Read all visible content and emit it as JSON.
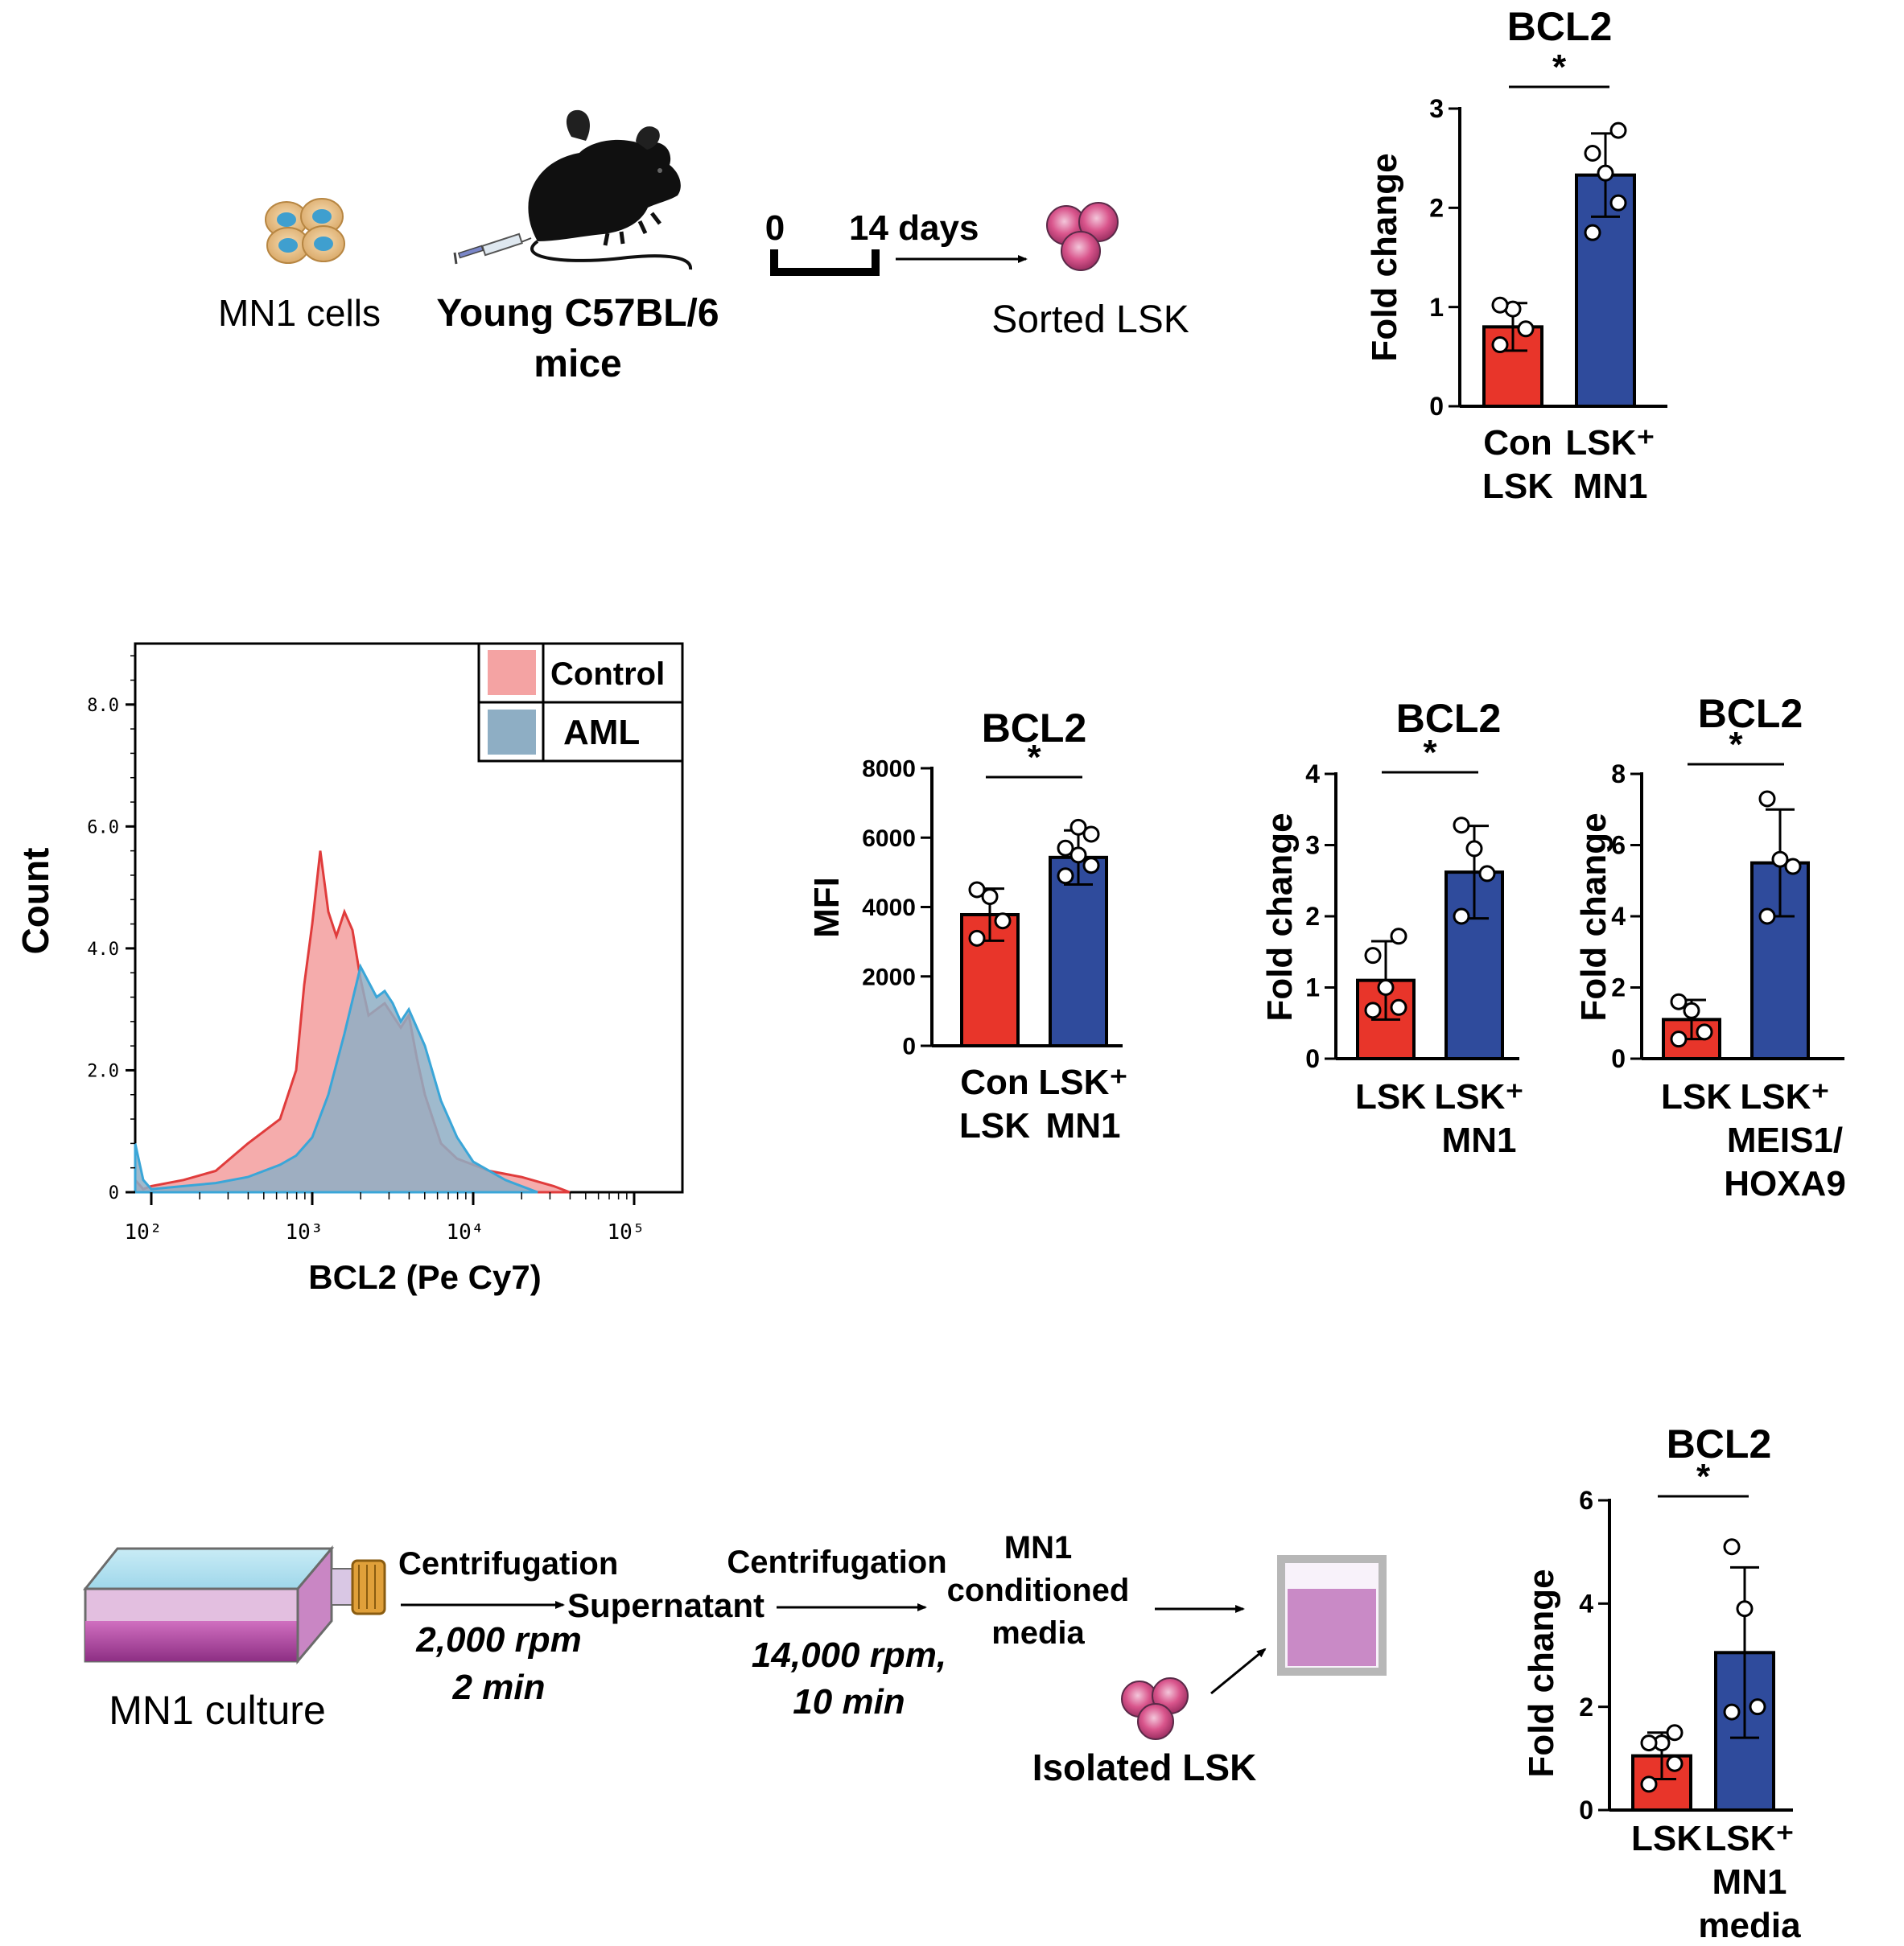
{
  "colors": {
    "red": "#e8352a",
    "blue": "#2f4b9c",
    "control_fill": "#f4a3a3",
    "control_line": "#e03c3c",
    "aml_fill": "#8eaec4",
    "aml_line": "#3aa6d8",
    "pink": "#d9558c",
    "purple": "#b06cb5"
  },
  "panel_a": {
    "mn1_cells": "MN1 cells",
    "mouse_line1": "Young C57BL/6",
    "mouse_line2": "mice",
    "timeline_start": "0",
    "timeline_end": "14 days",
    "sorted": "Sorted LSK"
  },
  "panel_c": {
    "culture": "MN1 culture",
    "step1_title": "Centrifugation",
    "step1_speed": "2,000 rpm",
    "step1_time": "2 min",
    "supernatant": "Supernatant",
    "step2_title": "Centrifugation",
    "step2_speed": "14,000 rpm,",
    "step2_time": "10 min",
    "cm_line1": "MN1",
    "cm_line2": "conditioned",
    "cm_line3": "media",
    "isolated": "Isolated LSK"
  },
  "chart_data": [
    {
      "id": "bar_a",
      "type": "bar",
      "title": "BCL2",
      "ylabel": "Fold change",
      "ylim": [
        0,
        3
      ],
      "ticks": [
        "0",
        "1",
        "2",
        "3"
      ],
      "significance": "*",
      "categories": [
        [
          "Con",
          "LSK"
        ],
        [
          "LSK⁺",
          "MN1"
        ]
      ],
      "values": [
        0.8,
        2.33
      ],
      "err": [
        0.24,
        0.42
      ],
      "points": [
        [
          0.62,
          0.78,
          0.98,
          1.02
        ],
        [
          1.75,
          2.05,
          2.35,
          2.55,
          2.78
        ]
      ]
    },
    {
      "id": "histogram",
      "type": "area",
      "title": "",
      "xlabel": "BCL2 (Pe Cy7)",
      "ylabel": "Count",
      "ylim": [
        0,
        9.0
      ],
      "yticks": [
        "0",
        "2.0",
        "4.0",
        "6.0",
        "8.0"
      ],
      "xticks": [
        "10²",
        "10³",
        "10⁴",
        "10⁵"
      ],
      "xlim_log10": [
        1.9,
        5.3
      ],
      "legend": [
        "Control",
        "AML"
      ],
      "legend_position": "top-right",
      "series": [
        {
          "name": "Control",
          "x": [
            1.9,
            1.95,
            2.0,
            2.2,
            2.4,
            2.6,
            2.8,
            2.9,
            2.95,
            3.0,
            3.05,
            3.1,
            3.15,
            3.2,
            3.25,
            3.3,
            3.35,
            3.45,
            3.55,
            3.6,
            3.65,
            3.7,
            3.8,
            3.9,
            4.0,
            4.1,
            4.3,
            4.5,
            4.6
          ],
          "y": [
            0.2,
            0.05,
            0.1,
            0.2,
            0.35,
            0.8,
            1.2,
            2.0,
            3.4,
            4.4,
            5.6,
            4.6,
            4.2,
            4.6,
            4.3,
            3.5,
            2.9,
            3.1,
            2.7,
            2.9,
            2.2,
            1.6,
            0.8,
            0.55,
            0.45,
            0.35,
            0.25,
            0.1,
            0.0
          ]
        },
        {
          "name": "AML",
          "x": [
            1.9,
            1.95,
            2.0,
            2.2,
            2.4,
            2.6,
            2.8,
            2.9,
            3.0,
            3.1,
            3.2,
            3.3,
            3.4,
            3.45,
            3.5,
            3.55,
            3.6,
            3.7,
            3.8,
            3.9,
            4.0,
            4.2,
            4.4
          ],
          "y": [
            0.8,
            0.2,
            0.05,
            0.1,
            0.15,
            0.25,
            0.45,
            0.6,
            0.9,
            1.6,
            2.6,
            3.7,
            3.2,
            3.3,
            3.1,
            2.8,
            3.0,
            2.4,
            1.5,
            0.9,
            0.5,
            0.2,
            0.0
          ]
        }
      ]
    },
    {
      "id": "bar_b1",
      "type": "bar",
      "title": "BCL2",
      "ylabel": "MFI",
      "ylim": [
        0,
        8000
      ],
      "ticks": [
        "0",
        "2000",
        "4000",
        "6000",
        "8000"
      ],
      "significance": "*",
      "categories": [
        [
          "Con",
          "LSK"
        ],
        [
          "LSK⁺",
          "MN1"
        ]
      ],
      "values": [
        3780,
        5430
      ],
      "err": [
        750,
        780
      ],
      "points": [
        [
          3100,
          3600,
          4300,
          4500
        ],
        [
          4900,
          5200,
          5500,
          5700,
          6100,
          6300
        ]
      ]
    },
    {
      "id": "bar_b2",
      "type": "bar",
      "title": "BCL2",
      "ylabel": "Fold change",
      "ylim": [
        0,
        4
      ],
      "ticks": [
        "0",
        "1",
        "2",
        "3",
        "4"
      ],
      "significance": "*",
      "categories": [
        [
          "LSK"
        ],
        [
          "LSK⁺",
          "MN1"
        ]
      ],
      "values": [
        1.1,
        2.62
      ],
      "err": [
        0.55,
        0.65
      ],
      "points": [
        [
          0.68,
          0.72,
          1.0,
          1.45,
          1.72
        ],
        [
          2.0,
          2.6,
          2.95,
          3.28
        ]
      ]
    },
    {
      "id": "bar_b3",
      "type": "bar",
      "title": "BCL2",
      "ylabel": "Fold change",
      "ylim": [
        0,
        8
      ],
      "ticks": [
        "0",
        "2",
        "4",
        "6",
        "8"
      ],
      "significance": "*",
      "categories": [
        [
          "LSK"
        ],
        [
          "LSK⁺",
          "MEIS1/",
          "HOXA9"
        ]
      ],
      "values": [
        1.1,
        5.5
      ],
      "err": [
        0.55,
        1.5
      ],
      "points": [
        [
          0.55,
          0.75,
          1.35,
          1.6
        ],
        [
          4.0,
          5.4,
          5.6,
          7.3
        ]
      ]
    },
    {
      "id": "bar_c",
      "type": "bar",
      "title": "BCL2",
      "ylabel": "Fold change",
      "ylim": [
        0,
        6
      ],
      "ticks": [
        "0",
        "2",
        "4",
        "6"
      ],
      "significance": "*",
      "categories": [
        [
          "LSK"
        ],
        [
          "LSK⁺",
          "MN1",
          "media"
        ]
      ],
      "values": [
        1.05,
        3.05
      ],
      "err": [
        0.45,
        1.65
      ],
      "points": [
        [
          0.5,
          0.9,
          1.3,
          1.3,
          1.5
        ],
        [
          1.9,
          2.0,
          3.9,
          5.1
        ]
      ]
    }
  ]
}
